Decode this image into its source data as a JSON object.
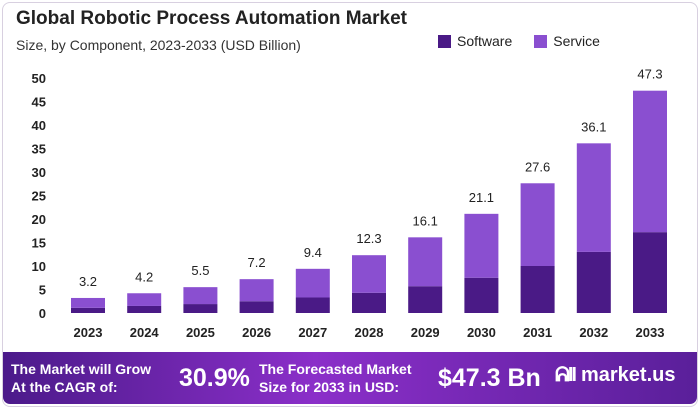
{
  "chart_data": {
    "type": "bar",
    "stacked": true,
    "title": "Global Robotic Process Automation Market",
    "subtitle": "Size, by Component, 2023-2033 (USD Billion)",
    "categories": [
      "2023",
      "2024",
      "2025",
      "2026",
      "2027",
      "2028",
      "2029",
      "2030",
      "2031",
      "2032",
      "2033"
    ],
    "series": [
      {
        "name": "Software",
        "color": "#4a1a86",
        "values": [
          1.1,
          1.5,
          1.9,
          2.5,
          3.3,
          4.3,
          5.7,
          7.5,
          10.0,
          13.0,
          17.2
        ]
      },
      {
        "name": "Service",
        "color": "#8a4fd0",
        "values": [
          2.1,
          2.7,
          3.6,
          4.7,
          6.1,
          8.0,
          10.4,
          13.6,
          17.6,
          23.1,
          30.1
        ]
      }
    ],
    "totals": [
      "3.2",
      "4.2",
      "5.5",
      "7.2",
      "9.4",
      "12.3",
      "16.1",
      "21.1",
      "27.6",
      "36.1",
      "47.3"
    ],
    "yticks": [
      0,
      5,
      10,
      15,
      20,
      25,
      30,
      35,
      40,
      45,
      50
    ],
    "ylim": [
      0,
      50
    ],
    "grid": false,
    "legend_position": "top-right"
  },
  "footer": {
    "cagr_label_1": "The Market will Grow",
    "cagr_label_2": "At the CAGR of:",
    "cagr_value": "30.9%",
    "forecast_label_1": "The Forecasted Market",
    "forecast_label_2": "Size for 2033 in USD:",
    "forecast_value": "$47.3 Bn",
    "brand": "market.us"
  }
}
